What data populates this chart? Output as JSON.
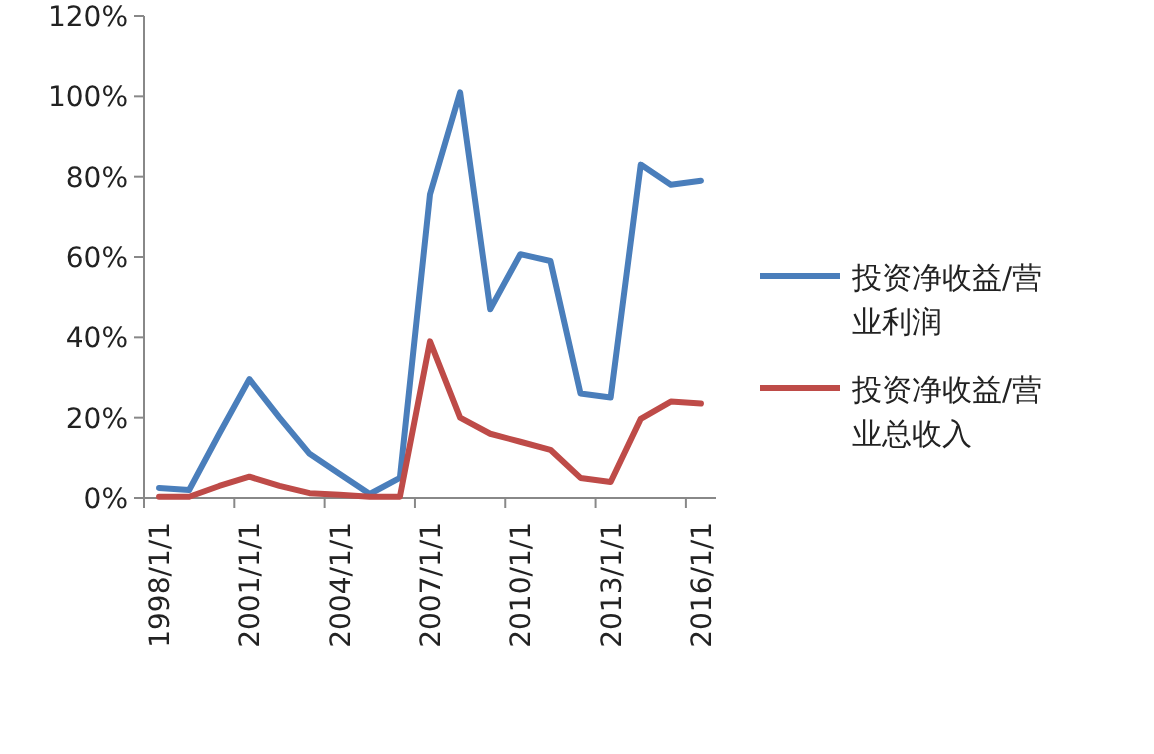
{
  "chart_data": {
    "type": "line",
    "categories": [
      "1998/1/1",
      null,
      null,
      "2001/1/1",
      null,
      null,
      "2004/1/1",
      null,
      null,
      "2007/1/1",
      null,
      null,
      "2010/1/1",
      null,
      null,
      "2013/1/1",
      null,
      null,
      "2016/1/1"
    ],
    "series": [
      {
        "name": "投资净收益/营业利润",
        "color": "#4a7ebb",
        "values": [
          2.5,
          2,
          16,
          29.6,
          20,
          11,
          6,
          1,
          5,
          75.6,
          101,
          47,
          60.7,
          59,
          26,
          25,
          83,
          78,
          79
        ]
      },
      {
        "name": "投资净收益/营业总收入",
        "color": "#be4b48",
        "values": [
          0.3,
          0.3,
          3,
          5.3,
          3,
          1.2,
          0.8,
          0.3,
          0.3,
          39,
          20,
          16,
          14,
          12,
          5,
          4,
          19.7,
          24,
          23.5
        ]
      }
    ],
    "ylim": [
      0,
      120
    ],
    "yticks": [
      {
        "value": 0,
        "label": "0%"
      },
      {
        "value": 20,
        "label": "20%"
      },
      {
        "value": 40,
        "label": "40%"
      },
      {
        "value": 60,
        "label": "60%"
      },
      {
        "value": 80,
        "label": "80%"
      },
      {
        "value": 100,
        "label": "100%"
      },
      {
        "value": 120,
        "label": "120%"
      }
    ],
    "legend": "right"
  }
}
